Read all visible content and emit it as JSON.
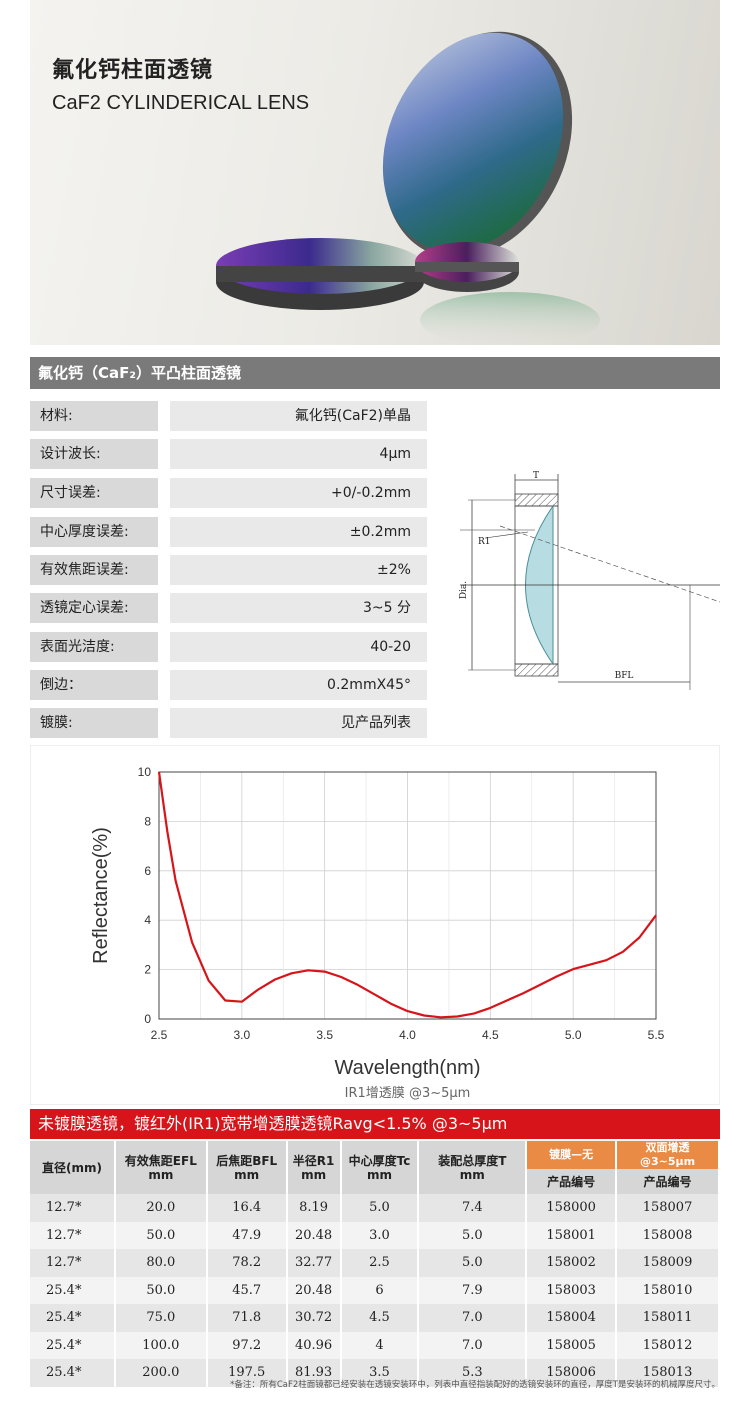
{
  "hero": {
    "title_cn": "氟化钙柱面透镜",
    "title_en": "CaF2 CYLINDERICAL LENS"
  },
  "section_title": "氟化钙（CaF₂）平凸柱面透镜",
  "specs": [
    {
      "label": "材料:",
      "value": "氟化钙(CaF2)单晶"
    },
    {
      "label": "设计波长:",
      "value": "4μm"
    },
    {
      "label": "尺寸误差:",
      "value": "+0/-0.2mm"
    },
    {
      "label": "中心厚度误差:",
      "value": "±0.2mm"
    },
    {
      "label": "有效焦距误差:",
      "value": "±2%"
    },
    {
      "label": "透镜定心误差:",
      "value": "3~5 分"
    },
    {
      "label": "表面光洁度:",
      "value": "40-20"
    },
    {
      "label": "倒边：",
      "value": "0.2mmX45°"
    },
    {
      "label": "镀膜:",
      "value": "见产品列表"
    }
  ],
  "diagram": {
    "t_label": "T",
    "r_label": "R1",
    "dia_label": "Dia.",
    "bfl_label": "BFL"
  },
  "chart_data": {
    "type": "line",
    "xlabel": "Wavelength(nm)",
    "ylabel": "Reflectance(%)",
    "caption": "IR1增透膜 @3~5μm",
    "xlim": [
      2.5,
      5.5
    ],
    "ylim": [
      0,
      10
    ],
    "x_ticks": [
      "2.5",
      "3.0",
      "3.5",
      "4.0",
      "4.5",
      "5.0",
      "5.5"
    ],
    "y_ticks": [
      "0",
      "2",
      "4",
      "6",
      "8",
      "10"
    ],
    "color": "#d7141a",
    "x": [
      2.5,
      2.55,
      2.6,
      2.7,
      2.8,
      2.9,
      3.0,
      3.1,
      3.2,
      3.3,
      3.4,
      3.5,
      3.6,
      3.7,
      3.8,
      3.9,
      4.0,
      4.1,
      4.2,
      4.3,
      4.4,
      4.5,
      4.6,
      4.7,
      4.8,
      4.9,
      5.0,
      5.1,
      5.2,
      5.3,
      5.4,
      5.5
    ],
    "y": [
      10,
      7.6,
      5.6,
      3.1,
      1.55,
      0.75,
      0.7,
      1.2,
      1.6,
      1.85,
      1.97,
      1.92,
      1.7,
      1.38,
      1.0,
      0.62,
      0.32,
      0.14,
      0.07,
      0.1,
      0.22,
      0.45,
      0.75,
      1.05,
      1.38,
      1.72,
      2.02,
      2.2,
      2.38,
      2.72,
      3.3,
      4.2
    ]
  },
  "table": {
    "title": "未镀膜透镜，镀红外(IR1)宽带增透膜透镜Ravg<1.5% @3~5μm",
    "headers": {
      "dia": "直径(mm)",
      "efl": "有效焦距EFL",
      "bfl": "后焦距BFL",
      "r1": "半径R1",
      "tc": "中心厚度Tc",
      "t": "装配总厚度T",
      "unit": "mm",
      "coat1": "镀膜—无",
      "coat2": "双面增透 @3~5μm",
      "pn": "产品编号"
    },
    "rows": [
      [
        "12.7*",
        "20.0",
        "16.4",
        "8.19",
        "5.0",
        "7.4",
        "158000",
        "158007"
      ],
      [
        "12.7*",
        "50.0",
        "47.9",
        "20.48",
        "3.0",
        "5.0",
        "158001",
        "158008"
      ],
      [
        "12.7*",
        "80.0",
        "78.2",
        "32.77",
        "2.5",
        "5.0",
        "158002",
        "158009"
      ],
      [
        "25.4*",
        "50.0",
        "45.7",
        "20.48",
        "6",
        "7.9",
        "158003",
        "158010"
      ],
      [
        "25.4*",
        "75.0",
        "71.8",
        "30.72",
        "4.5",
        "7.0",
        "158004",
        "158011"
      ],
      [
        "25.4*",
        "100.0",
        "97.2",
        "40.96",
        "4",
        "7.0",
        "158005",
        "158012"
      ],
      [
        "25.4*",
        "200.0",
        "197.5",
        "81.93",
        "3.5",
        "5.3",
        "158006",
        "158013"
      ]
    ],
    "note": "*备注：所有CaF2柱面镜都已经安装在透镜安装环中，列表中直径指装配好的透镜安装环的直径，厚度T是安装环的机械厚度尺寸。"
  }
}
